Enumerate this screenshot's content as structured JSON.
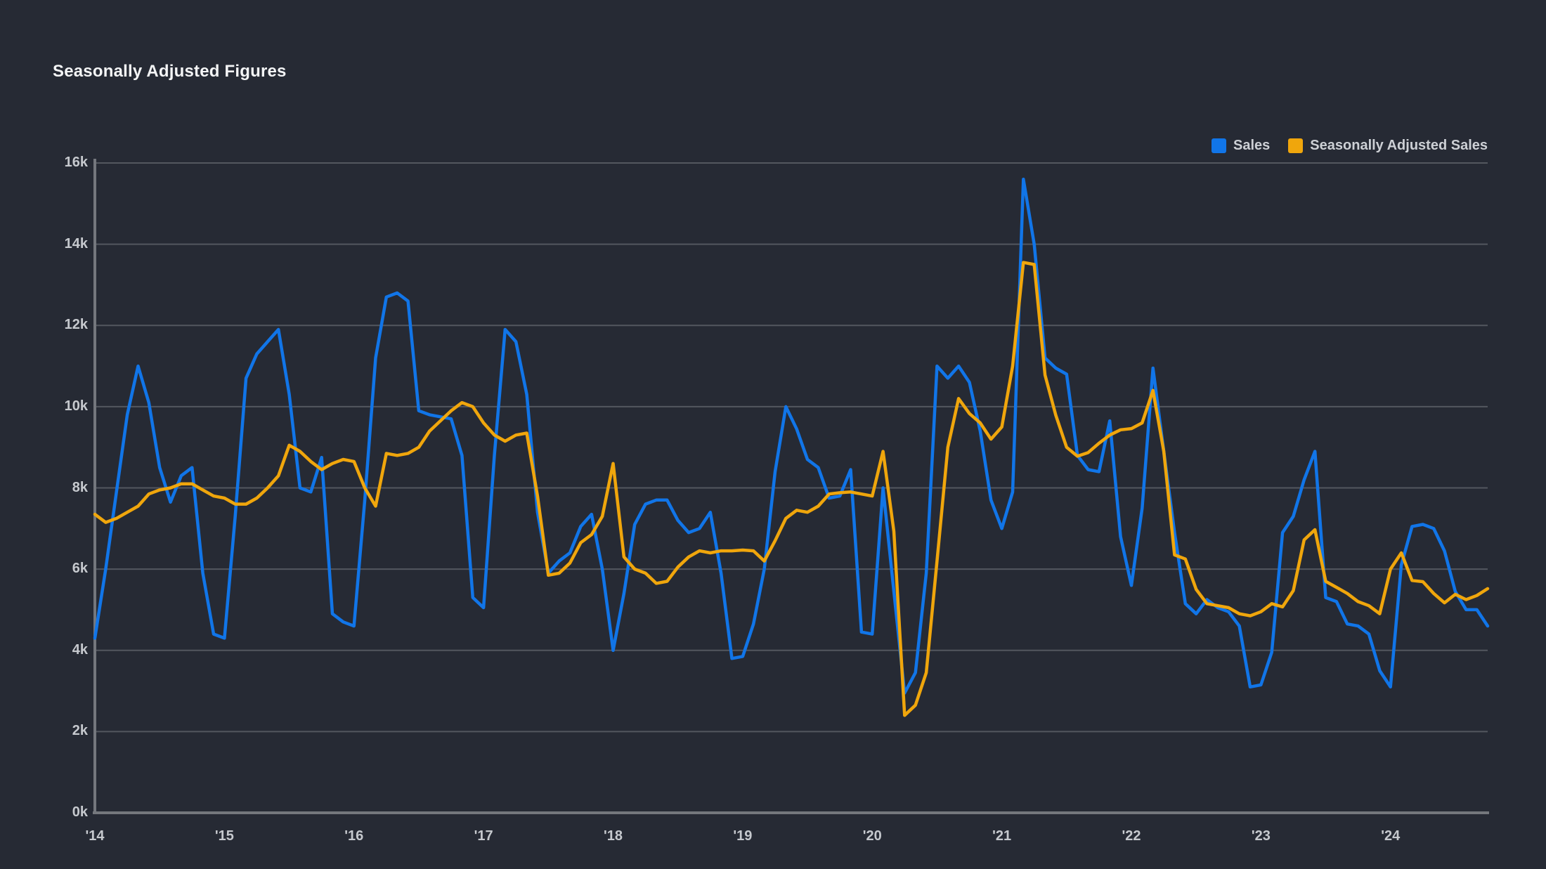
{
  "page": {
    "background": "#262a34"
  },
  "header": {
    "title": "Seasonally Adjusted Figures"
  },
  "legend": {
    "position": "top-right",
    "items": [
      {
        "label": "Sales",
        "color": "#1175e8"
      },
      {
        "label": "Seasonally Adjusted Sales",
        "color": "#f0a60c"
      }
    ]
  },
  "colors": {
    "background": "#262a34",
    "grid_line": "#53575f",
    "axis_line": "#74777d",
    "tick_text": "#c6c9ce",
    "title_text": "#f4f5f6",
    "sales_line": "#1175e8",
    "adjusted_line": "#f0a60c"
  },
  "chart_data": {
    "type": "line",
    "title": "Seasonally Adjusted Figures",
    "x_unit": "month",
    "x_start": "2014-01",
    "x_end": "2024-10",
    "x_tick_labels": [
      "'14",
      "'15",
      "'16",
      "'17",
      "'18",
      "'19",
      "'20",
      "'21",
      "'22",
      "'23",
      "'24"
    ],
    "x_tick_month_indices": [
      0,
      12,
      24,
      36,
      48,
      60,
      72,
      84,
      96,
      108,
      120
    ],
    "y_tick_labels": [
      "0k",
      "2k",
      "4k",
      "6k",
      "8k",
      "10k",
      "12k",
      "14k",
      "16k"
    ],
    "ylim_thousands": [
      0,
      16
    ],
    "values_unit": "thousands",
    "grid": "horizontal-only",
    "legend_position": "top-right",
    "series": [
      {
        "name": "Sales",
        "color": "#1175e8",
        "values": [
          4.3,
          6.0,
          7.9,
          9.8,
          11.0,
          10.1,
          8.5,
          7.65,
          8.3,
          8.5,
          5.9,
          4.4,
          4.3,
          7.3,
          10.7,
          11.3,
          11.6,
          11.9,
          10.3,
          8.0,
          7.9,
          8.75,
          4.9,
          4.7,
          4.6,
          7.7,
          11.2,
          12.7,
          12.8,
          12.6,
          9.9,
          9.8,
          9.75,
          9.7,
          8.8,
          5.3,
          5.05,
          8.8,
          11.9,
          11.6,
          10.3,
          7.4,
          5.9,
          6.2,
          6.4,
          7.05,
          7.35,
          6.0,
          4.0,
          5.4,
          7.1,
          7.6,
          7.7,
          7.7,
          7.2,
          6.9,
          7.0,
          7.4,
          5.9,
          3.8,
          3.85,
          4.65,
          6.0,
          8.4,
          10.0,
          9.45,
          8.7,
          8.5,
          7.75,
          7.8,
          8.45,
          4.45,
          4.4,
          8.0,
          5.45,
          2.95,
          3.45,
          5.9,
          11.0,
          10.7,
          11.0,
          10.6,
          9.4,
          7.7,
          7.0,
          7.9,
          15.6,
          14.0,
          11.2,
          10.95,
          10.8,
          8.8,
          8.45,
          8.4,
          9.65,
          6.8,
          5.6,
          7.5,
          10.95,
          8.9,
          6.9,
          5.15,
          4.9,
          5.25,
          5.05,
          4.95,
          4.6,
          3.1,
          3.15,
          3.95,
          6.9,
          7.3,
          8.2,
          8.9,
          5.3,
          5.2,
          4.65,
          4.6,
          4.4,
          3.5,
          3.1,
          6.1,
          7.05,
          7.1,
          7.0,
          6.45,
          5.45,
          5.0,
          5.0,
          4.6
        ]
      },
      {
        "name": "Seasonally Adjusted Sales",
        "color": "#f0a60c",
        "values": [
          7.35,
          7.15,
          7.25,
          7.4,
          7.55,
          7.85,
          7.95,
          8.0,
          8.1,
          8.1,
          7.95,
          7.8,
          7.75,
          7.6,
          7.6,
          7.75,
          8.0,
          8.3,
          9.05,
          8.9,
          8.65,
          8.45,
          8.6,
          8.7,
          8.65,
          8.0,
          7.55,
          8.85,
          8.8,
          8.85,
          9.0,
          9.4,
          9.65,
          9.9,
          10.1,
          10.0,
          9.6,
          9.3,
          9.15,
          9.3,
          9.35,
          7.8,
          5.85,
          5.9,
          6.15,
          6.65,
          6.85,
          7.3,
          8.6,
          6.3,
          6.0,
          5.9,
          5.65,
          5.7,
          6.05,
          6.3,
          6.45,
          6.4,
          6.45,
          6.45,
          6.47,
          6.45,
          6.2,
          6.7,
          7.25,
          7.45,
          7.4,
          7.55,
          7.85,
          7.88,
          7.9,
          7.85,
          7.8,
          8.9,
          6.93,
          2.4,
          2.65,
          3.45,
          6.2,
          9.0,
          10.2,
          9.83,
          9.6,
          9.2,
          9.5,
          11.0,
          13.55,
          13.5,
          10.78,
          9.79,
          9.0,
          8.78,
          8.87,
          9.1,
          9.3,
          9.43,
          9.46,
          9.6,
          10.4,
          8.9,
          6.35,
          6.25,
          5.5,
          5.15,
          5.1,
          5.05,
          4.9,
          4.85,
          4.95,
          5.15,
          5.07,
          5.47,
          6.72,
          6.97,
          5.7,
          5.55,
          5.4,
          5.2,
          5.1,
          4.9,
          6.0,
          6.4,
          5.72,
          5.69,
          5.4,
          5.17,
          5.38,
          5.25,
          5.35,
          5.52
        ]
      }
    ]
  }
}
